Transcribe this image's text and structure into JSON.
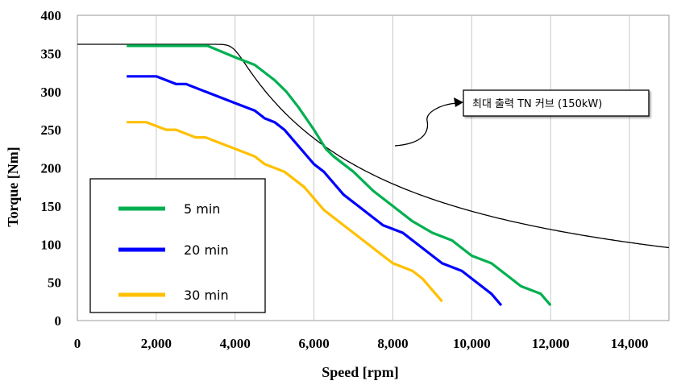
{
  "chart_data": {
    "type": "line",
    "xlabel": "Speed [rpm]",
    "ylabel": "Torque [Nm]",
    "xlim": [
      0,
      15000
    ],
    "ylim": [
      0,
      400
    ],
    "xticks": [
      0,
      2000,
      4000,
      6000,
      8000,
      10000,
      12000,
      14000
    ],
    "xtick_labels": [
      "0",
      "2,000",
      "4,000",
      "6,000",
      "8,000",
      "10,000",
      "12,000",
      "14,000"
    ],
    "yticks": [
      0,
      50,
      100,
      150,
      200,
      250,
      300,
      350,
      400
    ],
    "ytick_labels": [
      "0",
      "50",
      "100",
      "150",
      "200",
      "250",
      "300",
      "350",
      "400"
    ],
    "grid": "vertical",
    "legend_position": "bottom-left",
    "series": [
      {
        "name": "5 min",
        "color": "#00b050",
        "x": [
          1250,
          3300,
          4000,
          4500,
          5000,
          5300,
          5600,
          6000,
          6300,
          6500,
          7000,
          7500,
          8000,
          8500,
          9000,
          9500,
          10000,
          10500,
          11000,
          11250,
          11750,
          12000
        ],
        "y": [
          360,
          360,
          345,
          335,
          315,
          300,
          280,
          250,
          225,
          215,
          195,
          170,
          150,
          130,
          115,
          105,
          85,
          75,
          55,
          45,
          35,
          20
        ]
      },
      {
        "name": "20 min",
        "color": "#0000ff",
        "x": [
          1250,
          2000,
          2500,
          2750,
          3250,
          4000,
          4500,
          4750,
          5000,
          5250,
          5500,
          6000,
          6250,
          6750,
          7250,
          7750,
          8250,
          8750,
          9250,
          9750,
          10250,
          10500,
          10750
        ],
        "y": [
          320,
          320,
          310,
          310,
          300,
          285,
          275,
          265,
          260,
          250,
          235,
          205,
          195,
          165,
          145,
          125,
          115,
          95,
          75,
          65,
          45,
          35,
          20
        ]
      },
      {
        "name": "30 min",
        "color": "#ffc000",
        "x": [
          1250,
          1750,
          2250,
          2500,
          3000,
          3250,
          4000,
          4500,
          4750,
          5000,
          5250,
          5750,
          6250,
          6750,
          7250,
          7500,
          8000,
          8500,
          8750,
          9250
        ],
        "y": [
          260,
          260,
          250,
          250,
          240,
          240,
          225,
          215,
          205,
          200,
          195,
          175,
          145,
          125,
          105,
          95,
          75,
          65,
          55,
          25
        ]
      }
    ],
    "reference_curve": {
      "label": "최대 출력 TN 커브 (150kW)",
      "power_kw": 150,
      "base_torque": 362,
      "color": "#000000"
    }
  }
}
